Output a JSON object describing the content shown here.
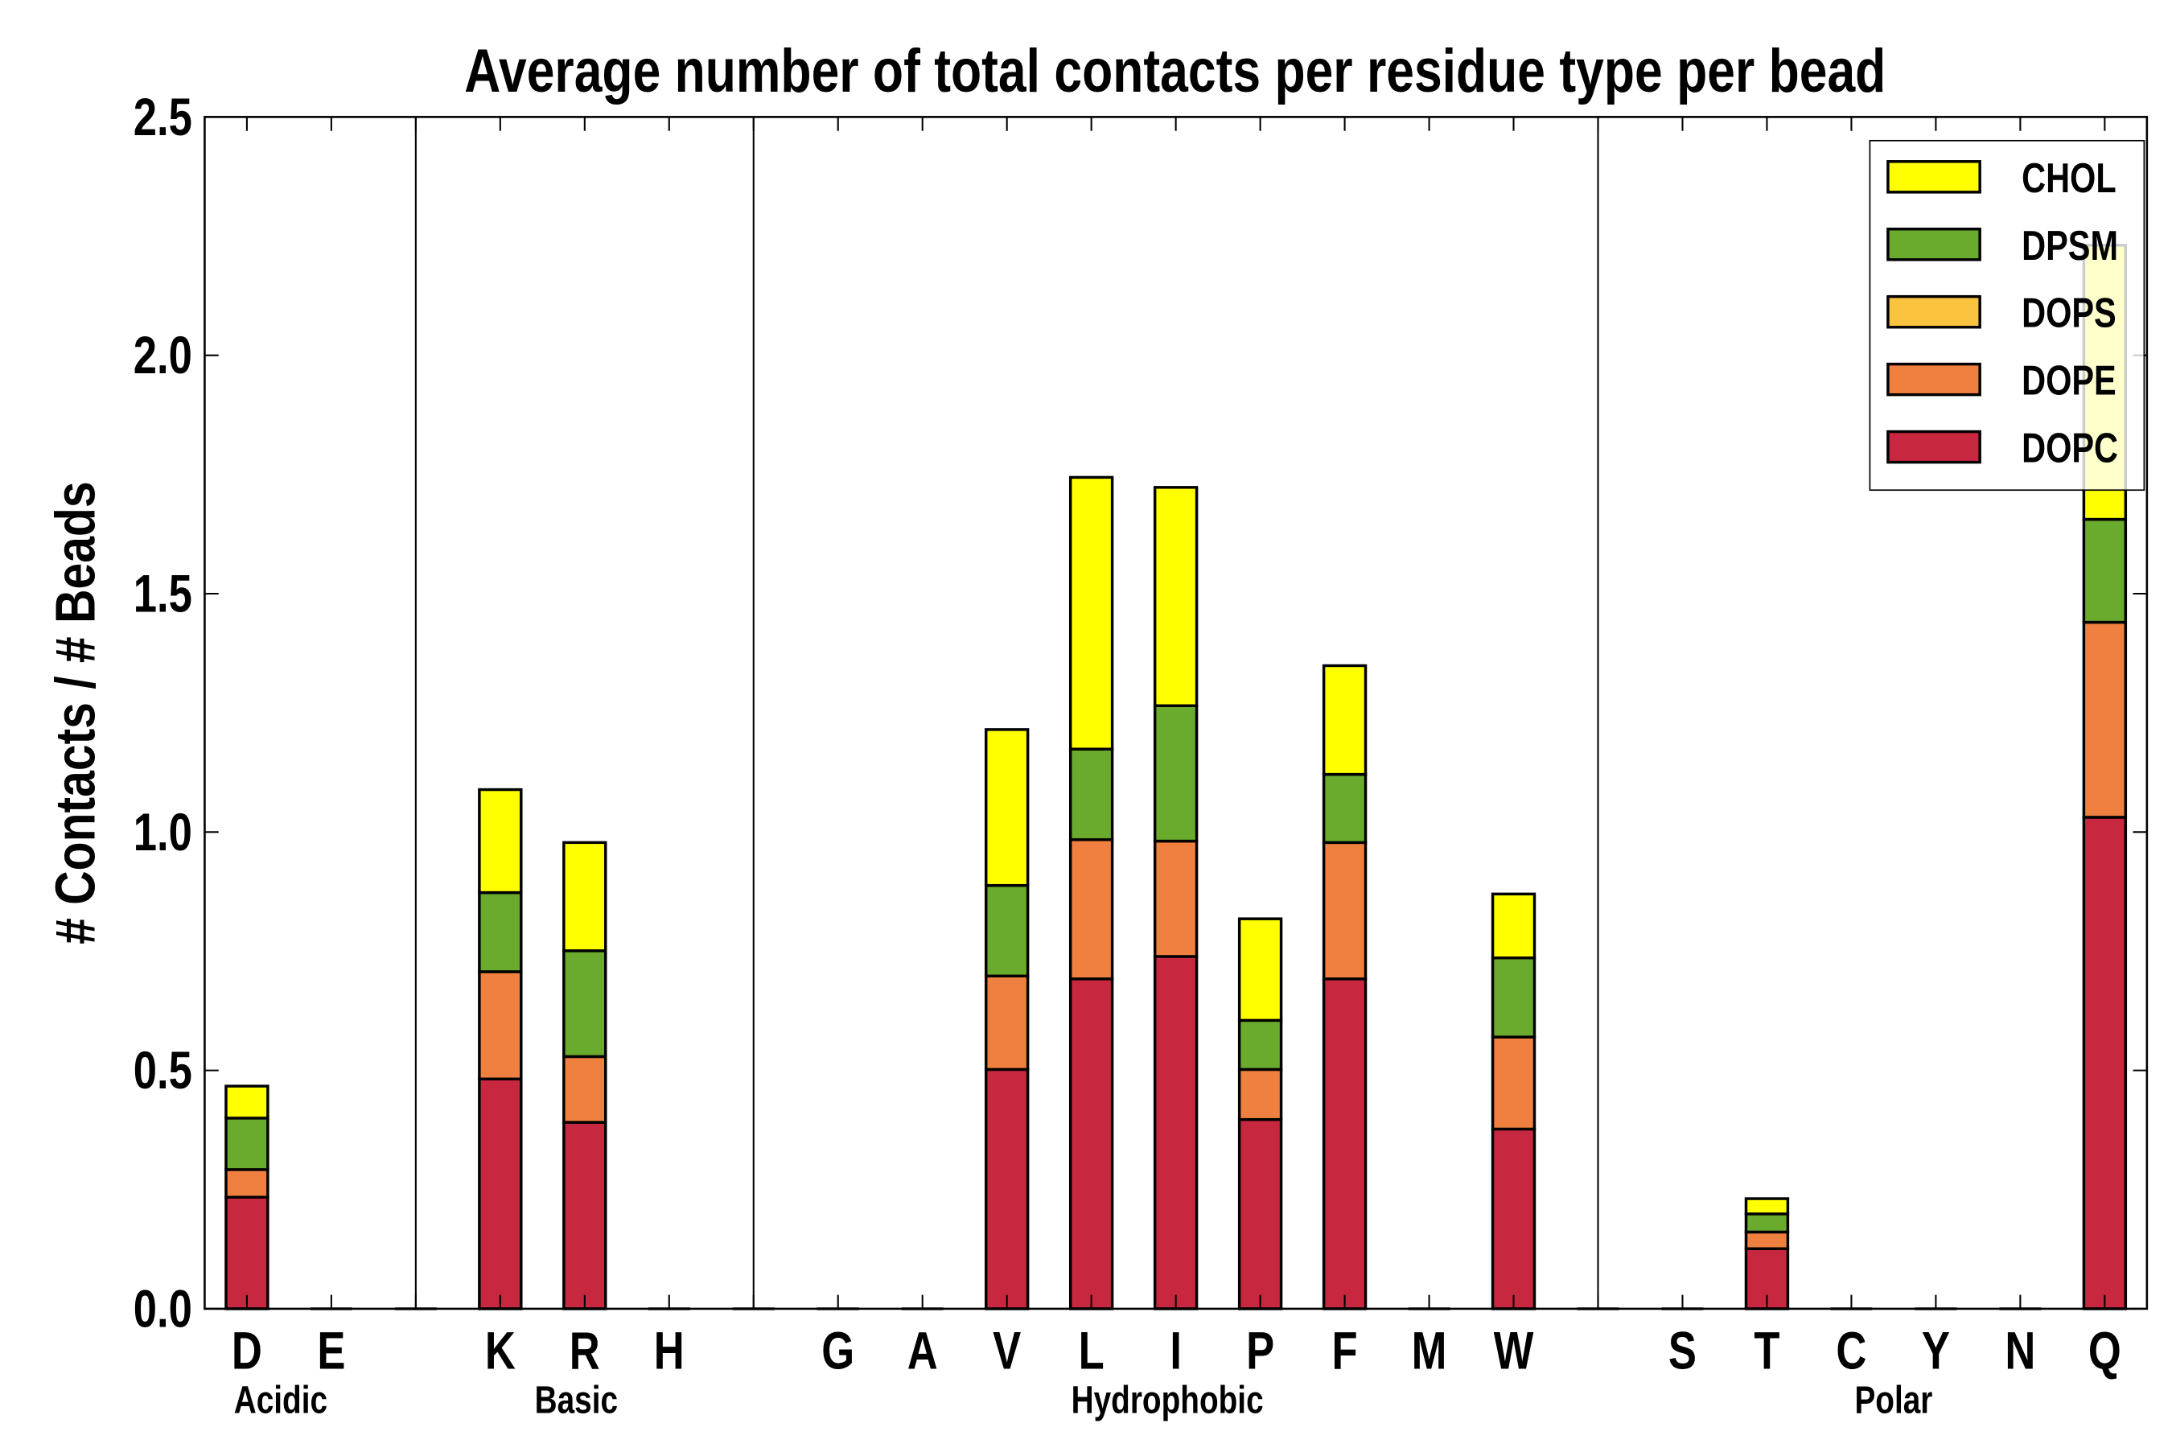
{
  "chart_data": {
    "type": "bar",
    "stacked": true,
    "title": "Average number of total contacts per residue type per bead",
    "xlabel": "",
    "ylabel": "# Contacts / # Beads",
    "ylim": [
      0,
      2.5
    ],
    "yticks": [
      "0.0",
      "0.5",
      "1.0",
      "1.5",
      "2.0",
      "2.5"
    ],
    "categories": [
      "D",
      "E",
      "",
      "K",
      "R",
      "H",
      "",
      "G",
      "A",
      "V",
      "L",
      "I",
      "P",
      "F",
      "M",
      "W",
      "",
      "S",
      "T",
      "C",
      "Y",
      "N",
      "Q"
    ],
    "groups": [
      {
        "label": "Acidic",
        "center": 0.4
      },
      {
        "label": "Basic",
        "center": 3.9
      },
      {
        "label": "Hydrophobic",
        "center": 10.9
      },
      {
        "label": "Polar",
        "center": 19.5
      }
    ],
    "separators": [
      2,
      6,
      16
    ],
    "series": [
      {
        "name": "DOPC",
        "color": "#c8283f",
        "values": [
          0.234,
          0,
          0,
          0.482,
          0.391,
          0,
          0,
          0,
          0,
          0.502,
          0.692,
          0.739,
          0.397,
          0.692,
          0,
          0.377,
          0,
          0,
          0.126,
          0,
          0,
          0,
          1.031
        ]
      },
      {
        "name": "DOPE",
        "color": "#ef8040",
        "values": [
          0.058,
          0,
          0,
          0.225,
          0.138,
          0,
          0,
          0,
          0,
          0.196,
          0.292,
          0.242,
          0.105,
          0.286,
          0,
          0.193,
          0,
          0,
          0.035,
          0,
          0,
          0,
          0.409
        ]
      },
      {
        "name": "DOPS",
        "color": "#fac440",
        "values": [
          0,
          0,
          0,
          0,
          0,
          0,
          0,
          0,
          0,
          0,
          0,
          0,
          0,
          0,
          0,
          0,
          0,
          0,
          0,
          0,
          0,
          0,
          0
        ]
      },
      {
        "name": "DPSM",
        "color": "#6aab2d",
        "values": [
          0.108,
          0,
          0,
          0.166,
          0.222,
          0,
          0,
          0,
          0,
          0.19,
          0.19,
          0.284,
          0.103,
          0.143,
          0,
          0.166,
          0,
          0,
          0.038,
          0,
          0,
          0,
          0.216
        ]
      },
      {
        "name": "CHOL",
        "color": "#ffff00",
        "values": [
          0.067,
          0,
          0,
          0.216,
          0.227,
          0,
          0,
          0,
          0,
          0.327,
          0.57,
          0.458,
          0.213,
          0.228,
          0,
          0.134,
          0,
          0,
          0.032,
          0,
          0,
          0,
          0.575
        ]
      }
    ],
    "legend": {
      "placement": "top-right",
      "order": [
        "CHOL",
        "DPSM",
        "DOPS",
        "DOPE",
        "DOPC"
      ]
    },
    "grid": false
  }
}
